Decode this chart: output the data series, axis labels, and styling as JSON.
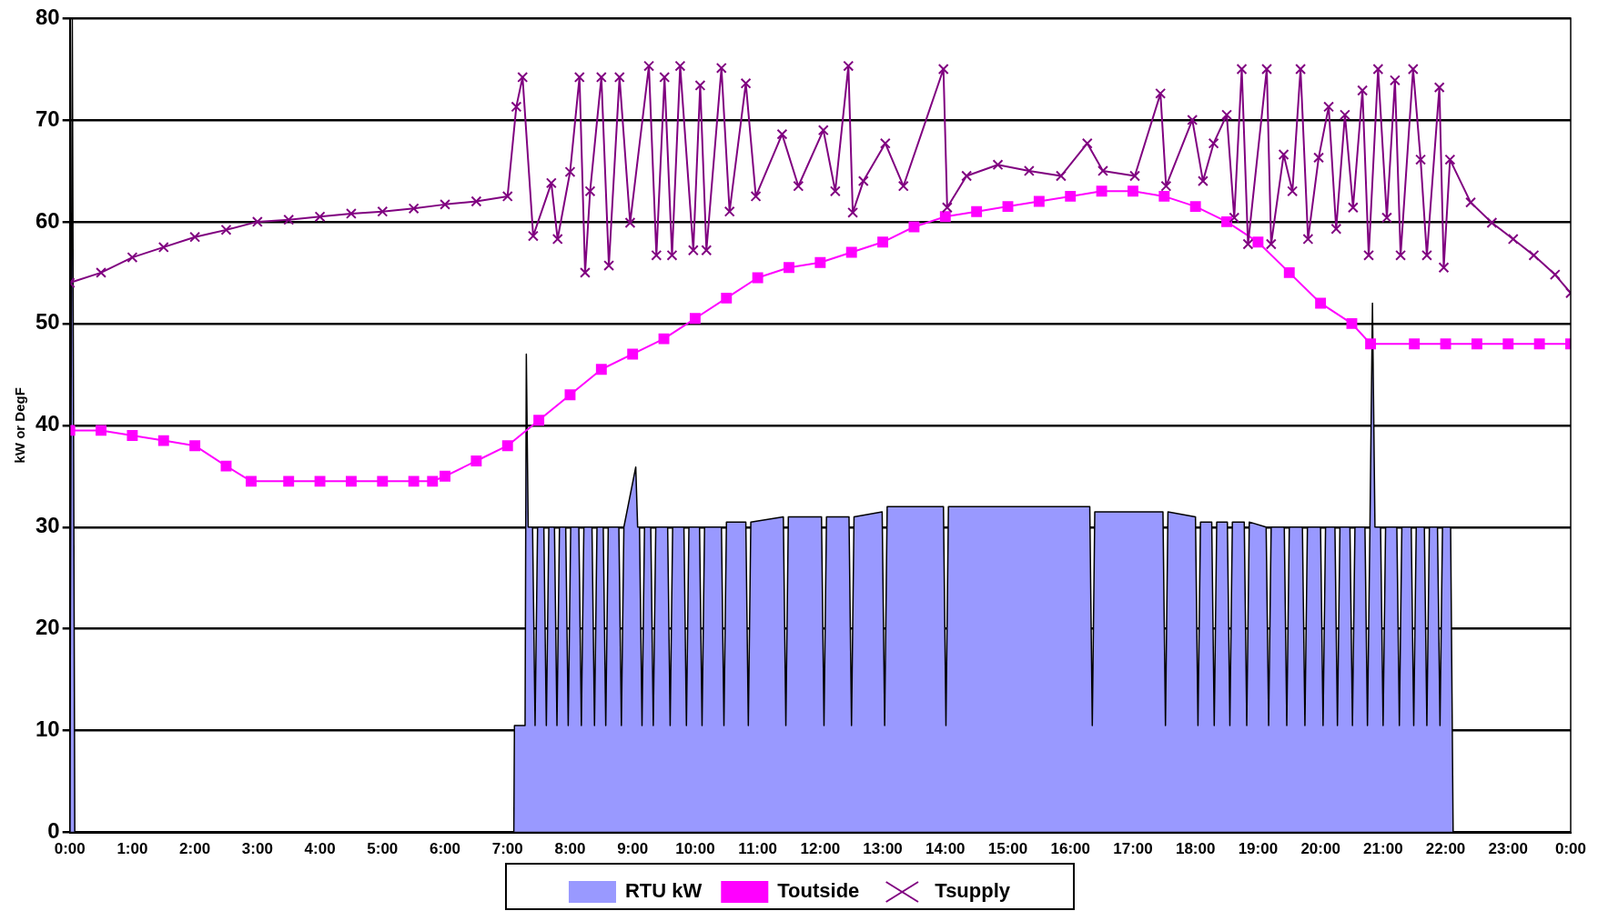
{
  "chart_data": {
    "type": "line",
    "ylabel": "kW or DegF",
    "xlim": [
      0,
      24
    ],
    "ylim": [
      0,
      80
    ],
    "xticks": [
      {
        "value": 0,
        "label": "0:00"
      },
      {
        "value": 1,
        "label": "1:00"
      },
      {
        "value": 2,
        "label": "2:00"
      },
      {
        "value": 3,
        "label": "3:00"
      },
      {
        "value": 4,
        "label": "4:00"
      },
      {
        "value": 5,
        "label": "5:00"
      },
      {
        "value": 6,
        "label": "6:00"
      },
      {
        "value": 7,
        "label": "7:00"
      },
      {
        "value": 8,
        "label": "8:00"
      },
      {
        "value": 9,
        "label": "9:00"
      },
      {
        "value": 10,
        "label": "10:00"
      },
      {
        "value": 11,
        "label": "11:00"
      },
      {
        "value": 12,
        "label": "12:00"
      },
      {
        "value": 13,
        "label": "13:00"
      },
      {
        "value": 14,
        "label": "14:00"
      },
      {
        "value": 15,
        "label": "15:00"
      },
      {
        "value": 16,
        "label": "16:00"
      },
      {
        "value": 17,
        "label": "17:00"
      },
      {
        "value": 18,
        "label": "18:00"
      },
      {
        "value": 19,
        "label": "19:00"
      },
      {
        "value": 20,
        "label": "20:00"
      },
      {
        "value": 21,
        "label": "21:00"
      },
      {
        "value": 22,
        "label": "22:00"
      },
      {
        "value": 23,
        "label": "23:00"
      },
      {
        "value": 24,
        "label": "0:00"
      }
    ],
    "yticks": [
      0,
      10,
      20,
      30,
      40,
      50,
      60,
      70,
      80
    ],
    "grid": "y",
    "legend": "bottom",
    "series": [
      {
        "name": "RTU kW",
        "type": "area",
        "color": "#9999ff",
        "marker": "none",
        "x": [
          0,
          0.04,
          0.08,
          7.1,
          7.11,
          7.28,
          7.3,
          7.33,
          7.4,
          7.44,
          7.48,
          7.58,
          7.62,
          7.66,
          7.75,
          7.79,
          7.83,
          7.93,
          7.97,
          8.01,
          8.14,
          8.18,
          8.22,
          8.35,
          8.39,
          8.43,
          8.53,
          8.57,
          8.61,
          8.78,
          8.82,
          8.86,
          9.05,
          9.08,
          9.11,
          9.15,
          9.19,
          9.29,
          9.33,
          9.37,
          9.56,
          9.6,
          9.64,
          9.82,
          9.86,
          9.9,
          10.07,
          10.11,
          10.15,
          10.42,
          10.46,
          10.5,
          10.81,
          10.85,
          10.89,
          11.41,
          11.45,
          11.49,
          12.02,
          12.06,
          12.1,
          12.46,
          12.5,
          12.54,
          12.99,
          13.03,
          13.07,
          13.97,
          14.01,
          14.05,
          16.31,
          16.35,
          16.39,
          17.48,
          17.52,
          17.56,
          18,
          18.04,
          18.08,
          18.26,
          18.3,
          18.34,
          18.51,
          18.55,
          18.59,
          18.78,
          18.82,
          18.86,
          19.13,
          19.17,
          19.21,
          19.42,
          19.46,
          19.5,
          19.71,
          19.75,
          19.79,
          20,
          20.04,
          20.08,
          20.23,
          20.27,
          20.31,
          20.47,
          20.51,
          20.55,
          20.71,
          20.75,
          20.79,
          20.83,
          20.87,
          20.96,
          21,
          21.04,
          21.22,
          21.26,
          21.3,
          21.45,
          21.49,
          21.53,
          21.66,
          21.7,
          21.74,
          21.87,
          21.91,
          21.95,
          22.08,
          22.12,
          24
        ],
        "values": [
          0,
          80,
          0,
          0,
          10.5,
          10.5,
          47,
          30,
          30,
          10.5,
          30,
          30,
          10.5,
          30,
          30,
          10.5,
          30,
          30,
          10.5,
          30,
          30,
          10.5,
          30,
          30,
          10.5,
          30,
          30,
          10.5,
          30,
          30,
          10.5,
          30,
          35.9,
          30,
          30,
          10.5,
          30,
          30,
          10.5,
          30,
          30,
          10.5,
          30,
          30,
          10.5,
          30,
          30,
          10.5,
          30,
          30,
          10.5,
          30.5,
          30.5,
          10.5,
          30.5,
          31,
          10.5,
          31,
          31,
          10.5,
          31,
          31,
          10.5,
          31,
          31.5,
          10.5,
          32,
          32,
          10.5,
          32,
          32,
          10.5,
          31.5,
          31.5,
          10.5,
          31.5,
          31,
          10.5,
          30.5,
          30.5,
          10.5,
          30.5,
          30.5,
          10.5,
          30.5,
          30.5,
          10.5,
          30.5,
          30,
          10.5,
          30,
          30,
          10.5,
          30,
          30,
          10.5,
          30,
          30,
          10.5,
          30,
          30,
          10.5,
          30,
          30,
          10.5,
          30,
          30,
          10.5,
          30,
          52,
          30,
          30,
          10.5,
          30,
          30,
          10.5,
          30,
          30,
          10.5,
          30,
          30,
          10.5,
          30,
          30,
          10.5,
          30,
          30,
          0,
          0
        ]
      },
      {
        "name": "Toutside",
        "type": "line",
        "color": "#ff00ff",
        "marker": "square",
        "x": [
          0,
          0.5,
          1,
          1.5,
          2,
          2.5,
          2.9,
          3.5,
          4,
          4.5,
          5,
          5.5,
          5.8,
          6,
          6.5,
          7,
          7.5,
          8,
          8.5,
          9,
          9.5,
          10,
          10.5,
          11,
          11.5,
          12,
          12.5,
          13,
          13.5,
          14,
          14.5,
          15,
          15.5,
          16,
          16.5,
          17,
          17.5,
          18,
          18.5,
          19,
          19.5,
          20,
          20.5,
          20.8,
          21.5,
          22,
          22.5,
          23,
          23.5,
          24
        ],
        "values": [
          39.5,
          39.5,
          39,
          38.5,
          38,
          36,
          34.5,
          34.5,
          34.5,
          34.5,
          34.5,
          34.5,
          34.5,
          35,
          36.5,
          38,
          40.5,
          43,
          45.5,
          47,
          48.5,
          50.5,
          52.5,
          54.5,
          55.5,
          56,
          57,
          58,
          59.5,
          60.5,
          61,
          61.5,
          62,
          62.5,
          63,
          63,
          62.5,
          61.5,
          60,
          58,
          55,
          52,
          50,
          48,
          48,
          48,
          48,
          48,
          48,
          48
        ]
      },
      {
        "name": "Tsupply",
        "type": "line",
        "color": "#800080",
        "marker": "cross",
        "x": [
          0,
          0.5,
          1,
          1.5,
          2,
          2.5,
          3,
          3.5,
          4,
          4.5,
          5,
          5.5,
          6,
          6.5,
          7,
          7.14,
          7.24,
          7.41,
          7.7,
          7.8,
          8,
          8.15,
          8.24,
          8.32,
          8.5,
          8.62,
          8.79,
          8.96,
          9.26,
          9.38,
          9.51,
          9.63,
          9.76,
          9.97,
          10.08,
          10.18,
          10.42,
          10.55,
          10.81,
          10.97,
          11.39,
          11.65,
          12.05,
          12.24,
          12.45,
          12.52,
          12.69,
          13.04,
          13.33,
          13.97,
          14.03,
          14.34,
          14.84,
          15.34,
          15.85,
          16.27,
          16.52,
          17.03,
          17.44,
          17.53,
          17.95,
          18.12,
          18.29,
          18.5,
          18.62,
          18.74,
          18.84,
          19.14,
          19.21,
          19.41,
          19.55,
          19.68,
          19.8,
          19.97,
          20.13,
          20.25,
          20.39,
          20.52,
          20.67,
          20.77,
          20.92,
          21.06,
          21.19,
          21.28,
          21.48,
          21.6,
          21.7,
          21.9,
          21.97,
          22.07,
          22.4,
          22.74,
          23.08,
          23.41,
          23.75,
          24
        ],
        "values": [
          54,
          55,
          56.5,
          57.5,
          58.5,
          59.2,
          60,
          60.2,
          60.5,
          60.8,
          61,
          61.3,
          61.7,
          62,
          62.5,
          71.3,
          74.2,
          58.6,
          63.8,
          58.3,
          64.9,
          74.2,
          55,
          63,
          74.2,
          55.7,
          74.2,
          59.9,
          75.3,
          56.7,
          74.2,
          56.7,
          75.3,
          57.2,
          73.4,
          57.2,
          75.1,
          61,
          73.6,
          62.5,
          68.6,
          63.5,
          69,
          63,
          75.3,
          60.9,
          64,
          67.7,
          63.5,
          75,
          61.4,
          64.5,
          65.6,
          65,
          64.5,
          67.7,
          65,
          64.5,
          72.6,
          63.5,
          70,
          64,
          67.7,
          70.5,
          60.4,
          75,
          57.8,
          75,
          57.8,
          66.6,
          63,
          75,
          58.3,
          66.3,
          71.3,
          59.3,
          70.5,
          61.4,
          72.9,
          56.7,
          75,
          60.4,
          73.9,
          56.7,
          75,
          66.1,
          56.7,
          73.2,
          55.5,
          66.1,
          61.9,
          59.9,
          58.3,
          56.7,
          54.8,
          53
        ]
      }
    ]
  }
}
